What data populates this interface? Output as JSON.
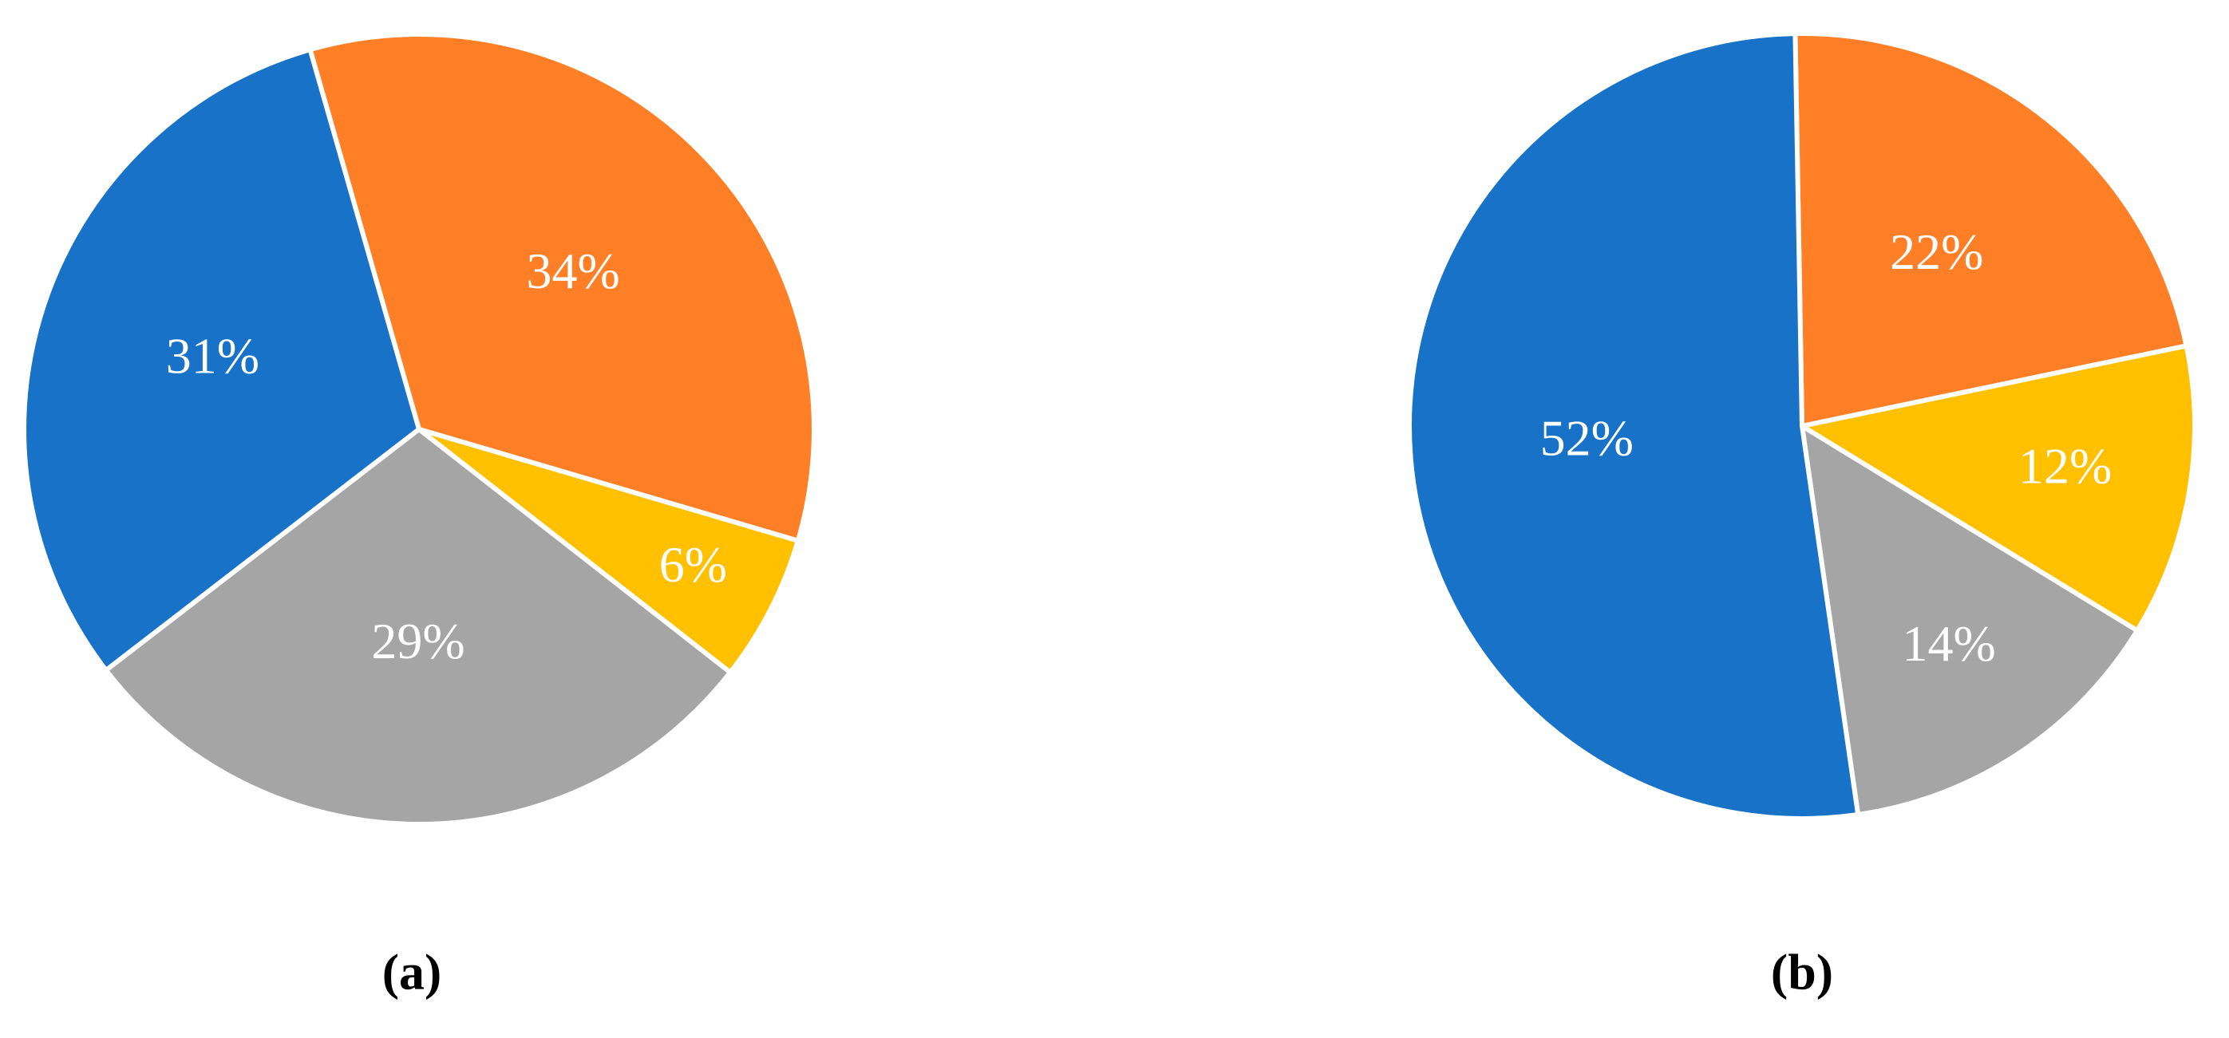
{
  "chart_data": [
    {
      "type": "pie",
      "label": "(a)",
      "values": [
        34,
        6,
        29,
        31
      ],
      "value_labels": [
        "34%",
        "6%",
        "29%",
        "31%"
      ],
      "colors": [
        "#ff7f27",
        "#ffc000",
        "#a5a5a5",
        "#1872c8"
      ]
    },
    {
      "type": "pie",
      "label": "(b)",
      "values": [
        22,
        12,
        14,
        52
      ],
      "value_labels": [
        "22%",
        "12%",
        "14%",
        "52%"
      ],
      "colors": [
        "#ff7f27",
        "#ffc000",
        "#a5a5a5",
        "#1872c8"
      ]
    }
  ]
}
